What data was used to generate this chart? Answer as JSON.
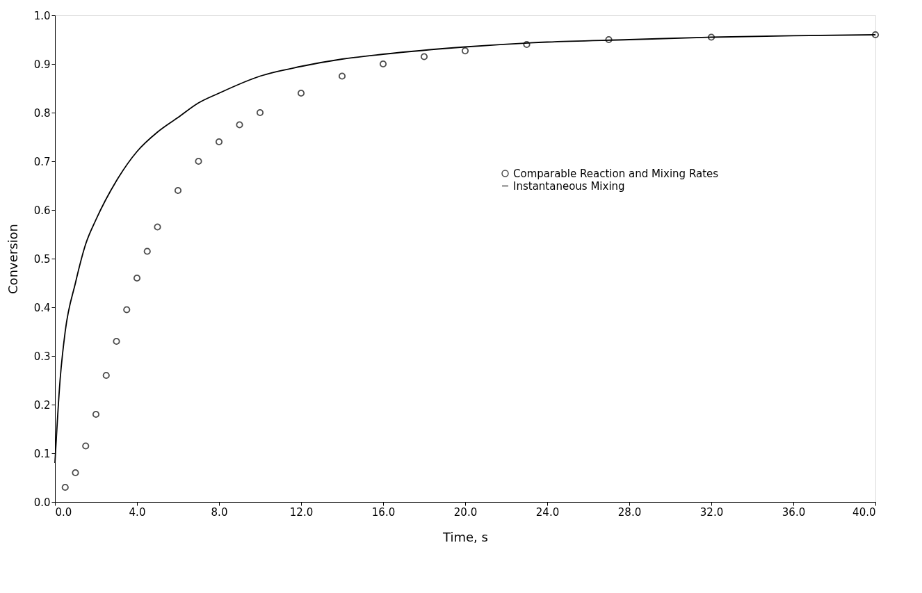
{
  "chart_data": {
    "type": "scatter",
    "xlabel": "Time, s",
    "ylabel": "Conversion",
    "xlim": [
      0,
      40
    ],
    "ylim": [
      0,
      1
    ],
    "xticks": [
      {
        "value": 0,
        "label": "0.0"
      },
      {
        "value": 4,
        "label": "4.0"
      },
      {
        "value": 8,
        "label": "8.0"
      },
      {
        "value": 12,
        "label": "12.0"
      },
      {
        "value": 16,
        "label": "16.0"
      },
      {
        "value": 20,
        "label": "20.0"
      },
      {
        "value": 24,
        "label": "24.0"
      },
      {
        "value": 28,
        "label": "28.0"
      },
      {
        "value": 32,
        "label": "32.0"
      },
      {
        "value": 36,
        "label": "36.0"
      },
      {
        "value": 40,
        "label": "40.0"
      }
    ],
    "yticks": [
      {
        "value": 0,
        "label": "0.0"
      },
      0.1,
      0.2,
      0.3,
      0.4,
      0.5,
      0.6,
      0.7,
      0.8,
      0.9,
      {
        "value": 1,
        "label": "1.0"
      }
    ],
    "grid": false,
    "legend": "right",
    "series": [
      {
        "name": "Comparable Reaction and Mixing Rates",
        "marker": "circle",
        "color": "#000000",
        "x": [
          0.5,
          1,
          1.5,
          2,
          2.5,
          3,
          3.5,
          4,
          4.5,
          5,
          6,
          7,
          8,
          9,
          10,
          12,
          14,
          16,
          18,
          20,
          23,
          27,
          32,
          40
        ],
        "values": [
          0.03,
          0.06,
          0.115,
          0.18,
          0.26,
          0.33,
          0.395,
          0.46,
          0.515,
          0.565,
          0.64,
          0.7,
          0.74,
          0.775,
          0.8,
          0.84,
          0.875,
          0.9,
          0.915,
          0.927,
          0.94,
          0.95,
          0.955,
          0.96
        ]
      },
      {
        "name": "Instantaneous Mixing",
        "type": "line",
        "marker": "none",
        "color": "#000000",
        "line_style": "solid",
        "x": [
          0,
          0.25,
          0.5,
          1,
          1.5,
          2,
          3,
          4,
          5,
          6,
          7,
          8,
          10,
          12,
          14,
          16,
          20,
          24,
          28,
          32,
          36,
          40
        ],
        "values": [
          0.08,
          0.25,
          0.35,
          0.45,
          0.53,
          0.58,
          0.66,
          0.72,
          0.76,
          0.79,
          0.82,
          0.84,
          0.875,
          0.895,
          0.91,
          0.92,
          0.935,
          0.945,
          0.95,
          0.955,
          0.958,
          0.96
        ]
      }
    ]
  }
}
